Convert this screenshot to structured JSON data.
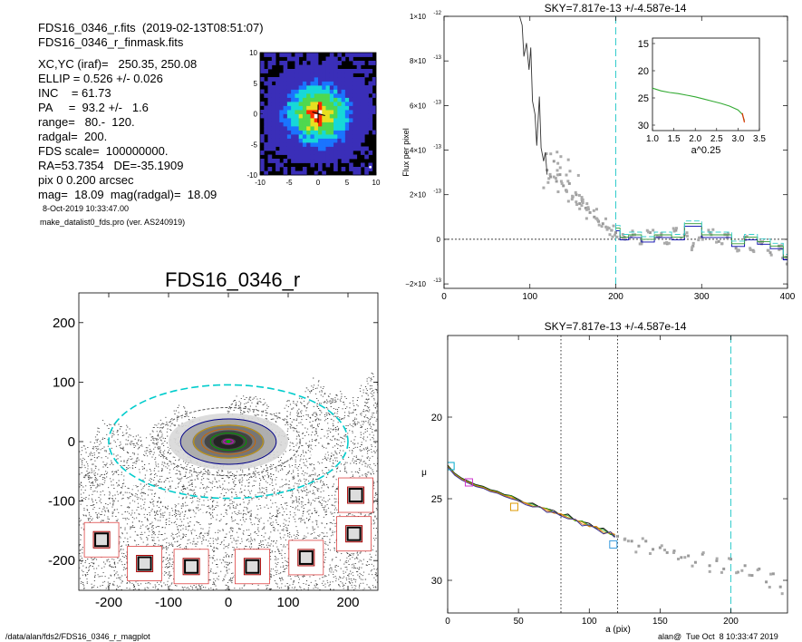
{
  "header": {
    "lines": [
      "FDS16_0346_r.fits  (2019-02-13T08:51:07)",
      "FDS16_0346_r_finmask.fits",
      "XC,YC (iraf)=   250.35, 250.08",
      "ELLIP = 0.526 +/- 0.026",
      "INC    = 61.73",
      "PA     =  93.2 +/-   1.6",
      "range=   80.-  120.",
      "radgal=  200.",
      "FDS scale=  100000000.",
      "RA=53.7354   DE=-35.1909",
      "pix 0 0.200 arcsec",
      "mag=  18.09  mag(radgal)=  18.09"
    ],
    "date": "8-Oct-2019 10:33:47.00",
    "program": "make_datalist0_fds.pro (ver. AS240919)"
  },
  "footer": {
    "path": "/data/alan/fds2/FDS16_0346_r_magplot",
    "user": "alan@  Tue Oct  8 10:33:47 2019"
  },
  "chart_data": [
    {
      "type": "heatmap",
      "panel": "center-zoom",
      "xlim": [
        -10,
        10
      ],
      "ylim": [
        -10,
        10
      ],
      "xticks": [
        "-10",
        "-5",
        "0",
        "5",
        "10"
      ],
      "yticks": [
        "-10",
        "-5",
        "0",
        "5",
        "10"
      ],
      "colors": {
        "bg": "#000000",
        "low": "#3a2eb8",
        "mid1": "#1a74ff",
        "mid2": "#17d8d8",
        "mid3": "#4fd84f",
        "mid4": "#e8e020",
        "high": "#ff2a00",
        "peak": "#ffffff"
      }
    },
    {
      "type": "scatter",
      "panel": "galaxy-image",
      "title": "FDS16_0346_r",
      "xlim": [
        -250,
        250
      ],
      "ylim": [
        -250,
        250
      ],
      "xticks": [
        "-200",
        "-100",
        "0",
        "100",
        "200"
      ],
      "yticks": [
        "-200",
        "-100",
        "0",
        "100",
        "200"
      ],
      "ellipse_ellip": 0.526,
      "ellipse_pa_deg": 93.2,
      "ellipse_radii": [
        8,
        30,
        45,
        58,
        80,
        120,
        200
      ],
      "ellipse_colors": [
        "#cc00cc",
        "#009900",
        "#cc6600",
        "#cc9900",
        "#000088",
        "#555555",
        "#00cccc"
      ],
      "star_boxes": [
        {
          "x": -212,
          "y": -165
        },
        {
          "x": -140,
          "y": -205
        },
        {
          "x": -62,
          "y": -210
        },
        {
          "x": 40,
          "y": -210
        },
        {
          "x": 130,
          "y": -195
        },
        {
          "x": 210,
          "y": -155
        },
        {
          "x": 213,
          "y": -90
        }
      ]
    },
    {
      "type": "scatter",
      "panel": "flux-profile",
      "title": "SKY=7.817e-13 +/-4.587e-14",
      "ylabel": "Flux per pixel",
      "xlim": [
        0,
        400
      ],
      "ylim": [
        -2.2e-13,
        1e-12
      ],
      "xticks": [
        0,
        100,
        200,
        300,
        400
      ],
      "yticks": [
        {
          "v": 1e-12,
          "mant": "1",
          "exp": "-12"
        },
        {
          "v": 8e-13,
          "mant": "8",
          "exp": "-13"
        },
        {
          "v": 6e-13,
          "mant": "6",
          "exp": "-13"
        },
        {
          "v": 4e-13,
          "mant": "4",
          "exp": "-13"
        },
        {
          "v": 2e-13,
          "mant": "2",
          "exp": "-13"
        },
        {
          "v": 0,
          "mant": "0",
          "exp": ""
        },
        {
          "v": -2e-13,
          "mant": "−2",
          "exp": "-13"
        }
      ],
      "radgal_line": 200,
      "line_x": [
        88,
        91,
        93,
        96,
        99,
        101,
        103,
        106,
        108,
        111,
        113,
        116,
        118,
        120
      ],
      "line_y": [
        1e-12,
        9.6e-13,
        8.2e-13,
        8.8e-13,
        7.6e-13,
        8.6e-13,
        6.2e-13,
        5.6e-13,
        4.2e-13,
        6.4e-13,
        4.1e-13,
        3.5e-13,
        3.9e-13,
        2.9e-13
      ],
      "scatter_x": [
        120,
        124,
        128,
        131,
        135,
        139,
        142,
        146,
        150,
        154,
        158,
        161,
        165,
        170,
        175,
        180,
        185,
        190,
        195,
        200,
        210,
        220,
        230,
        240,
        250,
        260,
        270,
        280,
        290,
        300,
        310,
        320,
        330,
        340,
        350,
        360,
        370,
        380,
        390,
        398
      ],
      "scatter_y": [
        3.1e-13,
        2.8e-13,
        3.5e-13,
        2.6e-13,
        2.9e-13,
        2.4e-13,
        2.2e-13,
        2.5e-13,
        1.9e-13,
        2e-13,
        1.6e-13,
        1.7e-13,
        1.4e-13,
        1.2e-13,
        1e-13,
        8e-14,
        7e-14,
        5e-14,
        4e-14,
        3e-14,
        1e-14,
        2e-14,
        -1e-14,
        3e-14,
        1e-14,
        -2e-14,
        4e-14,
        2e-14,
        -3e-14,
        1e-14,
        3e-14,
        -1e-14,
        2e-14,
        -4e-14,
        1e-14,
        -5e-14,
        -2e-14,
        -6e-14,
        -3e-14,
        -8e-14
      ],
      "step_x": [
        200,
        205,
        215,
        230,
        245,
        265,
        280,
        300,
        320,
        335,
        350,
        365,
        380,
        395,
        400
      ],
      "step_y": [
        5e-14,
        1e-14,
        2e-14,
        0,
        2e-14,
        1e-14,
        7e-14,
        2e-14,
        2e-14,
        -2e-14,
        1e-14,
        -1e-14,
        -3e-14,
        -8e-14,
        -8e-14
      ]
    },
    {
      "type": "line",
      "panel": "inset-curve-of-growth",
      "xlabel": "a^0.25",
      "xlim": [
        1.0,
        3.5
      ],
      "ylim": [
        31,
        14
      ],
      "xticks": [
        "1.0",
        "1.5",
        "2.0",
        "2.5",
        "3.0",
        "3.5"
      ],
      "yticks": [
        "15",
        "20",
        "25",
        "30"
      ],
      "x": [
        1.0,
        1.2,
        1.4,
        1.6,
        1.8,
        2.0,
        2.2,
        2.4,
        2.6,
        2.8,
        3.0,
        3.1,
        3.15
      ],
      "y": [
        23.2,
        23.7,
        24.0,
        24.2,
        24.5,
        24.8,
        25.2,
        25.6,
        26.0,
        26.5,
        27.2,
        28.0,
        29.2
      ]
    },
    {
      "type": "scatter",
      "panel": "surface-brightness",
      "title": "SKY=7.817e-13 +/-4.587e-14",
      "xlabel": "a (pix)",
      "ylabel": "μ",
      "xlim": [
        0,
        240
      ],
      "ylim": [
        32,
        15
      ],
      "xticks": [
        "0",
        "50",
        "100",
        "150",
        "200"
      ],
      "yticks": [
        "20",
        "25",
        "30"
      ],
      "range_lines": [
        80,
        120
      ],
      "radgal_line": 200,
      "profile_x": [
        0,
        5,
        10,
        15,
        20,
        25,
        30,
        35,
        40,
        45,
        50,
        55,
        60,
        65,
        70,
        75,
        80,
        85,
        90,
        95,
        100,
        105,
        110,
        115,
        118
      ],
      "profile_y": [
        23.0,
        23.5,
        23.8,
        24.0,
        24.2,
        24.3,
        24.5,
        24.6,
        24.8,
        24.9,
        25.1,
        25.3,
        25.4,
        25.5,
        25.7,
        25.8,
        26.0,
        26.1,
        26.3,
        26.5,
        26.6,
        26.8,
        27.0,
        27.1,
        27.3
      ],
      "scatter_x": [
        120,
        125,
        130,
        135,
        140,
        145,
        150,
        155,
        160,
        165,
        170,
        175,
        180,
        185,
        190,
        195,
        200,
        205,
        210,
        215,
        220,
        225,
        230,
        235
      ],
      "scatter_y": [
        27.3,
        27.5,
        27.6,
        27.9,
        27.6,
        28.1,
        28.0,
        28.3,
        28.2,
        28.6,
        28.5,
        28.9,
        28.4,
        29.1,
        28.8,
        29.3,
        28.7,
        29.5,
        29.1,
        29.7,
        29.3,
        30.1,
        29.6,
        30.4
      ],
      "markers": [
        {
          "x": 2,
          "y": 23.0,
          "color": "#00aacc"
        },
        {
          "x": 15,
          "y": 24.0,
          "color": "#cc33cc"
        },
        {
          "x": 47,
          "y": 25.5,
          "color": "#dd9900"
        },
        {
          "x": 117,
          "y": 27.8,
          "color": "#3399dd"
        }
      ]
    }
  ]
}
